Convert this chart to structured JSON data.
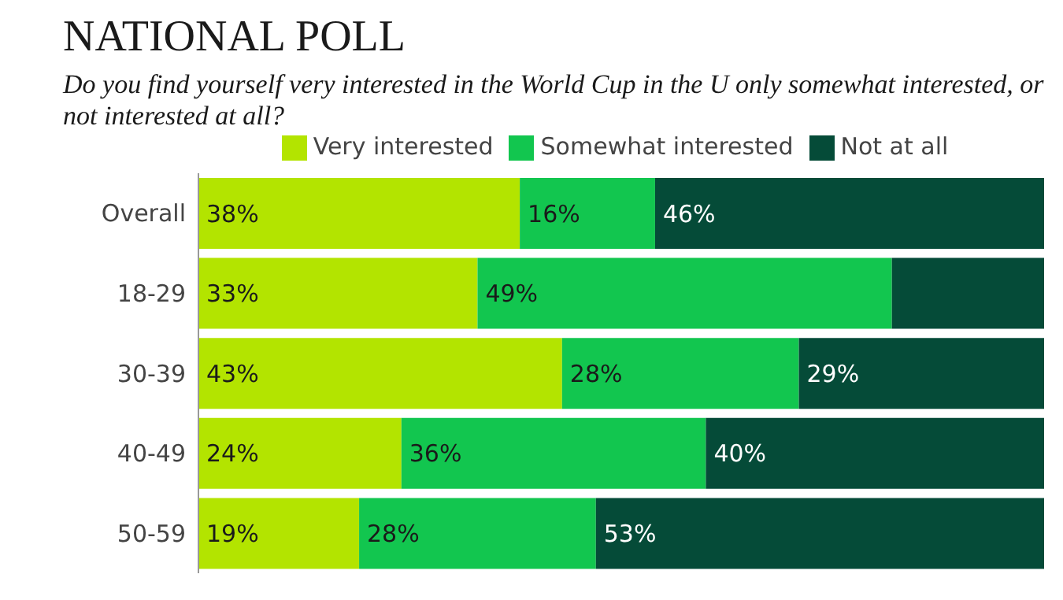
{
  "chart_data": {
    "type": "bar",
    "orientation": "horizontal",
    "stacked": true,
    "title": "NATIONAL POLL",
    "subtitle": "Do you find yourself very interested in the World Cup in the U only somewhat interested, or not interested at all?",
    "categories": [
      "Overall",
      "18-29",
      "30-39",
      "40-49",
      "50-59"
    ],
    "series": [
      {
        "name": "Very interested",
        "color": "#b3e400",
        "values": [
          38,
          33,
          43,
          24,
          19
        ],
        "value_labels": [
          "38%",
          "33%",
          "43%",
          "24%",
          "19%"
        ]
      },
      {
        "name": "Somewhat interested",
        "color": "#12c64f",
        "values": [
          16,
          49,
          28,
          36,
          28
        ],
        "value_labels": [
          "16%",
          "49%",
          "28%",
          "36%",
          "28%"
        ]
      },
      {
        "name": "Not at all",
        "color": "#054b38",
        "values": [
          46,
          18,
          29,
          40,
          53
        ],
        "value_labels": [
          "46%",
          null,
          "29%",
          "40%",
          "53%"
        ]
      }
    ],
    "xlim": [
      0,
      100
    ],
    "tick_labels": "y",
    "legend": "top",
    "grid": false
  }
}
